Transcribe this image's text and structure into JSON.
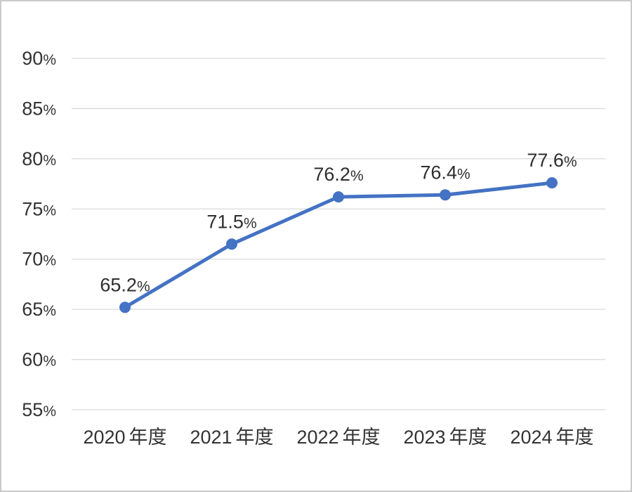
{
  "chart_data": {
    "type": "line",
    "title": "",
    "xlabel": "",
    "ylabel": "",
    "categories": [
      "2020年度",
      "2021年度",
      "2022年度",
      "2023年度",
      "2024年度"
    ],
    "values": [
      65.2,
      71.5,
      76.2,
      76.4,
      77.6
    ],
    "data_labels": [
      "65.2%",
      "71.5%",
      "76.2%",
      "76.4%",
      "77.6%"
    ],
    "unit": "%",
    "ylim": [
      55,
      90
    ],
    "ytick_step": 5,
    "ytick_labels": [
      "55%",
      "60%",
      "65%",
      "70%",
      "75%",
      "80%",
      "85%",
      "90%"
    ],
    "grid": true,
    "legend": false,
    "marker": "circle"
  },
  "colors": {
    "line": "#4472C4",
    "marker": "#4472C4",
    "gridline": "#DADADA",
    "tick_text": "#333333",
    "data_label_text": "#2E2E2E",
    "canvas_border": "#C9C9C9",
    "background": "#FFFFFF"
  }
}
